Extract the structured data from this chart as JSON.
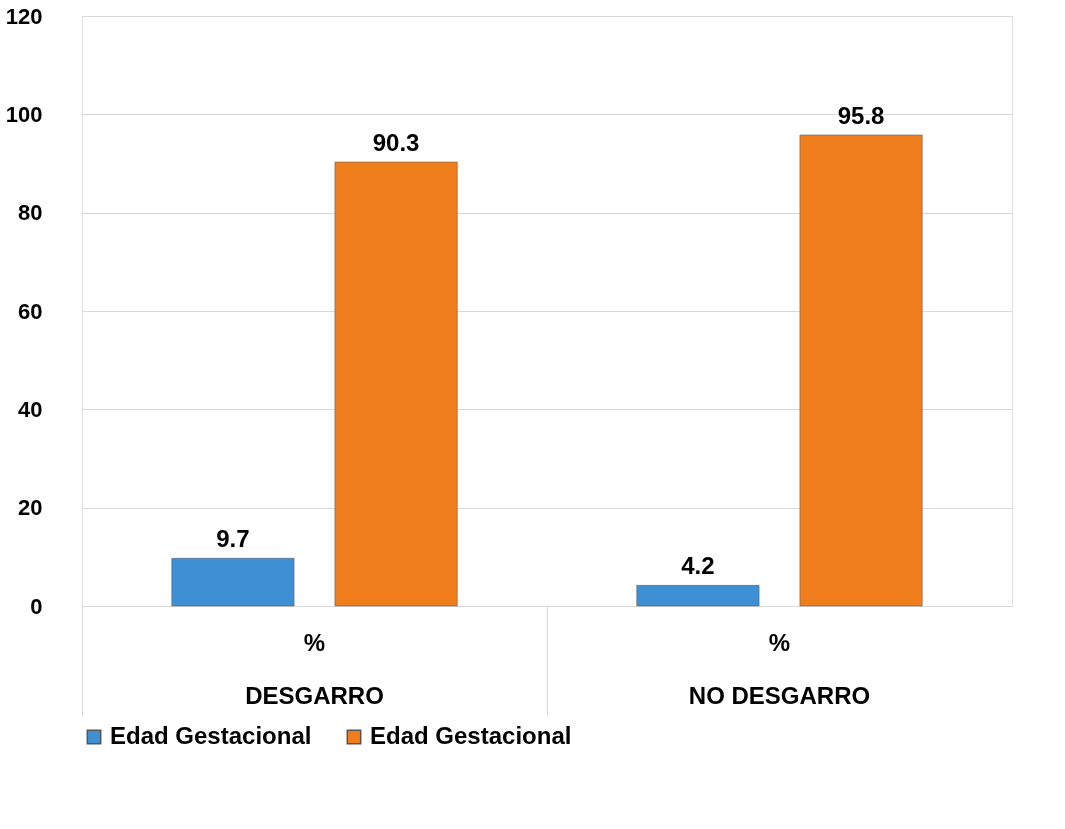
{
  "chart_data": {
    "type": "bar",
    "categories": [
      "DESGARRO",
      "NO DESGARRO"
    ],
    "series": [
      {
        "name": "Edad Gestacional",
        "color": "#3f8fd4",
        "values": [
          9.7,
          4.2
        ]
      },
      {
        "name": "Edad Gestacional",
        "color": "#f07d1c",
        "values": [
          90.3,
          95.8
        ]
      }
    ],
    "ylim": [
      0,
      120
    ],
    "yticks": [
      0,
      20,
      40,
      60,
      80,
      100,
      120
    ],
    "grid": "y",
    "legend": "bottom",
    "data_labels": true,
    "annotations": [
      "%",
      "%"
    ]
  }
}
